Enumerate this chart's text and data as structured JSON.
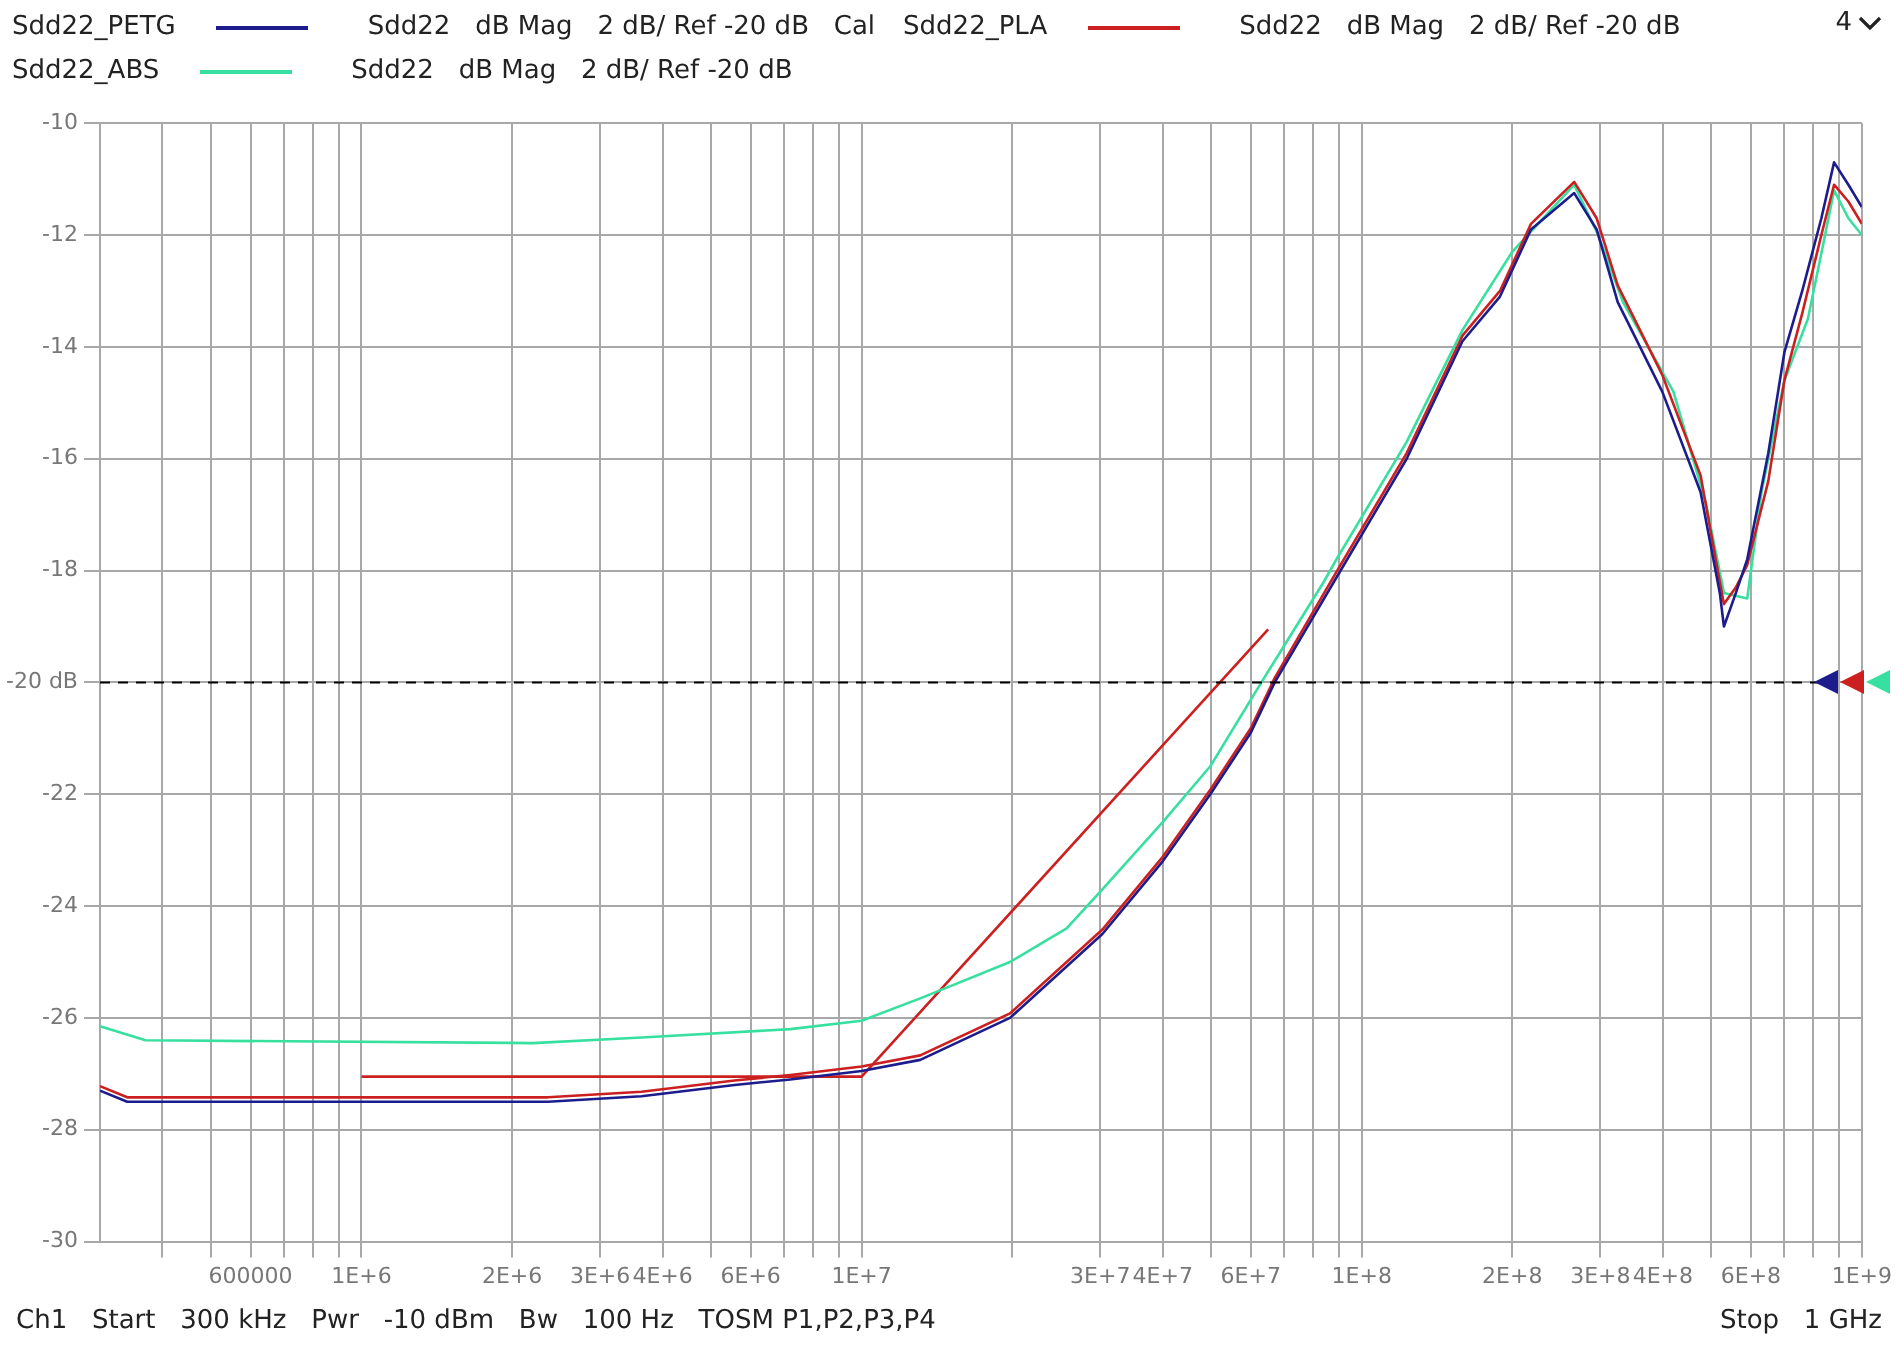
{
  "chart_data": {
    "type": "line",
    "legend": "top",
    "grid": true,
    "log": "x",
    "marker": "none",
    "line_style": "solid",
    "xlim": [
      300000,
      1000000000
    ],
    "ylim": [
      -30,
      -10
    ],
    "xticks": [
      {
        "value": 400000,
        "label": null
      },
      {
        "value": 500000,
        "label": null
      },
      {
        "value": 600000,
        "label": "600000"
      },
      {
        "value": 700000,
        "label": null
      },
      {
        "value": 800000,
        "label": null
      },
      {
        "value": 900000,
        "label": null
      },
      {
        "value": 1000000,
        "label": "1E+6"
      },
      {
        "value": 2000000,
        "label": "2E+6"
      },
      {
        "value": 3000000,
        "label": "3E+6"
      },
      {
        "value": 4000000,
        "label": "4E+6"
      },
      {
        "value": 5000000,
        "label": null
      },
      {
        "value": 6000000,
        "label": "6E+6"
      },
      {
        "value": 7000000,
        "label": null
      },
      {
        "value": 8000000,
        "label": null
      },
      {
        "value": 9000000,
        "label": null
      },
      {
        "value": 10000000,
        "label": "1E+7"
      },
      {
        "value": 20000000,
        "label": null
      },
      {
        "value": 30000000,
        "label": "3E+7"
      },
      {
        "value": 40000000,
        "label": "4E+7"
      },
      {
        "value": 50000000,
        "label": null
      },
      {
        "value": 60000000,
        "label": "6E+7"
      },
      {
        "value": 70000000,
        "label": null
      },
      {
        "value": 80000000,
        "label": null
      },
      {
        "value": 90000000,
        "label": null
      },
      {
        "value": 100000000,
        "label": "1E+8"
      },
      {
        "value": 200000000,
        "label": "2E+8"
      },
      {
        "value": 300000000,
        "label": "3E+8"
      },
      {
        "value": 400000000,
        "label": "4E+8"
      },
      {
        "value": 500000000,
        "label": null
      },
      {
        "value": 600000000,
        "label": "6E+8"
      },
      {
        "value": 700000000,
        "label": null
      },
      {
        "value": 800000000,
        "label": null
      },
      {
        "value": 900000000,
        "label": null
      },
      {
        "value": 1000000000,
        "label": "1E+9"
      }
    ],
    "yticks": [
      -30,
      -28,
      -26,
      -24,
      -22,
      {
        "value": -20,
        "label": "-20 dB"
      },
      -18,
      -16,
      -14,
      -12,
      -10
    ],
    "ref_lines": [
      {
        "axis": "y",
        "value": -20,
        "color": "#000000",
        "line_style": "dashed"
      }
    ],
    "annotations": [
      "Sdd22   dB Mag   2 dB/ Ref -20 dB   Cal",
      "Sdd22   dB Mag   2 dB/ Ref -20 dB",
      "Sdd22   dB Mag   2 dB/ Ref -20 dB",
      "4",
      "Ch1   Start   300 kHz   Pwr   -10 dBm   Bw   100 Hz   TOSM P1,P2,P3,P4",
      "Stop   1 GHz"
    ],
    "series": [
      {
        "name": "Sdd22_PETG",
        "color": "#1c1c8c",
        "x": [
          300000,
          340000,
          2360000,
          3630000,
          5570000,
          7200000,
          10000000,
          13100000,
          19800000,
          30300000,
          40000000,
          49800000,
          60000000,
          67000000,
          88000000,
          123000000,
          159000000,
          189000000,
          218000000,
          266000000,
          295000000,
          325000000,
          399000000,
          476000000,
          520000000,
          530000000,
          560000000,
          590000000,
          650000000,
          700000000,
          760000000,
          830000000,
          880000000,
          940000000,
          1000000000
        ],
        "values": [
          -27.3,
          -27.5,
          -27.5,
          -27.4,
          -27.2,
          -27.1,
          -26.95,
          -26.75,
          -26.0,
          -24.5,
          -23.2,
          -22.0,
          -20.9,
          -20.0,
          -18.2,
          -16.0,
          -13.9,
          -13.1,
          -11.9,
          -11.25,
          -11.9,
          -13.2,
          -14.8,
          -16.6,
          -18.4,
          -19.0,
          -18.4,
          -17.8,
          -15.9,
          -14.1,
          -13.0,
          -11.7,
          -10.7,
          -11.1,
          -11.5
        ]
      },
      {
        "name": "Sdd22_PLA",
        "color": "#cc2020",
        "x": [
          300000,
          340000,
          2360000,
          3630000,
          5570000,
          7200000,
          10000000,
          13100000,
          19800000,
          30300000,
          40000000,
          49800000,
          60000000,
          67000000,
          88000000,
          123000000,
          159000000,
          189000000,
          218000000,
          266000000,
          295000000,
          325000000,
          399000000,
          476000000,
          520000000,
          530000000,
          560000000,
          590000000,
          650000000,
          700000000,
          760000000,
          830000000,
          880000000,
          940000000,
          1000000000
        ],
        "values": [
          -27.22,
          -27.42,
          -27.42,
          -27.32,
          -27.12,
          -27.02,
          -26.87,
          -26.67,
          -25.92,
          -24.42,
          -23.12,
          -21.92,
          -20.82,
          -19.92,
          -18.1,
          -15.9,
          -13.8,
          -13.0,
          -11.8,
          -11.05,
          -11.7,
          -12.9,
          -14.5,
          -16.3,
          -18.2,
          -18.6,
          -18.3,
          -17.9,
          -16.4,
          -14.6,
          -13.4,
          -12.0,
          -11.1,
          -11.4,
          -11.8
        ]
      },
      {
        "name": "Sdd22_ABS",
        "color": "#38e0a0",
        "x": [
          300000,
          370000,
          2200000,
          3630000,
          7200000,
          10000000,
          13100000,
          19800000,
          25700000,
          30300000,
          40000000,
          49800000,
          63000000,
          84000000,
          89000000,
          123000000,
          159000000,
          200000000,
          266000000,
          297000000,
          333000000,
          420000000,
          488000000,
          530000000,
          590000000,
          630000000,
          700000000,
          780000000,
          840000000,
          880000000,
          940000000,
          1000000000
        ],
        "values": [
          -26.15,
          -26.4,
          -26.45,
          -26.35,
          -26.2,
          -26.05,
          -25.65,
          -25.0,
          -24.4,
          -23.7,
          -22.5,
          -21.5,
          -20.0,
          -18.2,
          -17.8,
          -15.7,
          -13.7,
          -12.3,
          -11.1,
          -12.0,
          -13.2,
          -14.8,
          -16.8,
          -18.4,
          -18.5,
          -16.6,
          -14.6,
          -13.5,
          -12.1,
          -11.2,
          -11.7,
          -12.0
        ]
      },
      {
        "color": "#cc2020",
        "x": [
          1000000,
          10000000,
          65000000
        ],
        "values": [
          -27.05,
          -27.05,
          -19.05
        ]
      }
    ]
  }
}
